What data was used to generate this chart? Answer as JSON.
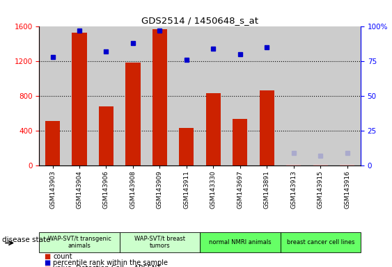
{
  "title": "GDS2514 / 1450648_s_at",
  "samples": [
    "GSM143903",
    "GSM143904",
    "GSM143906",
    "GSM143908",
    "GSM143909",
    "GSM143911",
    "GSM143330",
    "GSM143697",
    "GSM143891",
    "GSM143913",
    "GSM143915",
    "GSM143916"
  ],
  "counts": [
    510,
    1530,
    680,
    1190,
    1570,
    430,
    830,
    540,
    870,
    0,
    0,
    0
  ],
  "percentile_ranks": [
    78,
    97,
    82,
    88,
    97,
    76,
    84,
    80,
    85,
    null,
    null,
    null
  ],
  "absent_values": [
    null,
    null,
    null,
    null,
    null,
    null,
    null,
    null,
    null,
    8,
    5,
    8
  ],
  "absent_ranks": [
    null,
    null,
    null,
    null,
    null,
    null,
    null,
    null,
    null,
    9,
    7,
    9
  ],
  "detection_absent": [
    false,
    false,
    false,
    false,
    false,
    false,
    false,
    false,
    false,
    true,
    true,
    true
  ],
  "groups": [
    {
      "label": "WAP-SVT/t transgenic\nanimals",
      "indices": [
        0,
        1,
        2
      ],
      "color": "#ccffcc"
    },
    {
      "label": "WAP-SVT/t breast\ntumors",
      "indices": [
        3,
        4,
        5
      ],
      "color": "#ccffcc"
    },
    {
      "label": "normal NMRI animals",
      "indices": [
        6,
        7,
        8
      ],
      "color": "#66ff66"
    },
    {
      "label": "breast cancer cell lines",
      "indices": [
        9,
        10,
        11
      ],
      "color": "#66ff66"
    }
  ],
  "ylim_left": [
    0,
    1600
  ],
  "ylim_right": [
    0,
    100
  ],
  "yticks_left": [
    0,
    400,
    800,
    1200,
    1600
  ],
  "yticks_right": [
    0,
    25,
    50,
    75,
    100
  ],
  "bar_color": "#cc2200",
  "bar_color_absent": "#ffbbbb",
  "dot_color": "#0000cc",
  "dot_color_absent": "#aaaacc",
  "bg_color_samples": "#cccccc",
  "group_border_color": "#888888"
}
